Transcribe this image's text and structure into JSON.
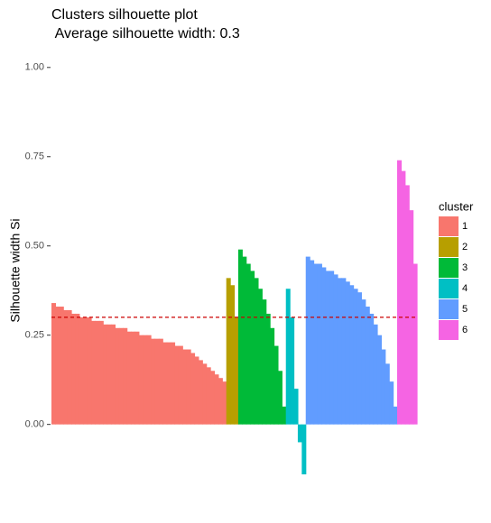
{
  "chart_data": {
    "type": "silhouette",
    "title": "Clusters silhouette plot",
    "subtitle": " Average silhouette width: 0.3",
    "y_label": "Silhouette width Si",
    "legend_title": "cluster",
    "legend_position": "right",
    "average_line": 0.3,
    "average_line_color": "#cc0000",
    "ylim": [
      -0.16,
      1.05
    ],
    "yticks": [
      {
        "value": 0,
        "label": "0.00"
      },
      {
        "value": 0.25,
        "label": "0.25"
      },
      {
        "value": 0.5,
        "label": "0.50"
      },
      {
        "value": 0.75,
        "label": "0.75"
      },
      {
        "value": 1,
        "label": "1.00"
      }
    ],
    "series": [
      {
        "name": "1",
        "color": "#f8766d",
        "values": [
          0.34,
          0.33,
          0.33,
          0.32,
          0.32,
          0.31,
          0.31,
          0.3,
          0.3,
          0.3,
          0.29,
          0.29,
          0.29,
          0.28,
          0.28,
          0.28,
          0.27,
          0.27,
          0.27,
          0.26,
          0.26,
          0.26,
          0.25,
          0.25,
          0.25,
          0.24,
          0.24,
          0.24,
          0.23,
          0.23,
          0.23,
          0.22,
          0.22,
          0.21,
          0.21,
          0.2,
          0.19,
          0.18,
          0.17,
          0.16,
          0.15,
          0.14,
          0.13,
          0.12
        ]
      },
      {
        "name": "2",
        "color": "#b79f00",
        "values": [
          0.41,
          0.39,
          0.3
        ]
      },
      {
        "name": "3",
        "color": "#00ba38",
        "values": [
          0.49,
          0.47,
          0.45,
          0.43,
          0.41,
          0.38,
          0.35,
          0.31,
          0.27,
          0.22,
          0.15,
          0.05
        ]
      },
      {
        "name": "4",
        "color": "#00bfc4",
        "values": [
          0.38,
          0.3,
          0.1,
          -0.05,
          -0.14
        ]
      },
      {
        "name": "5",
        "color": "#619cff",
        "values": [
          0.47,
          0.46,
          0.45,
          0.45,
          0.44,
          0.43,
          0.43,
          0.42,
          0.41,
          0.41,
          0.4,
          0.39,
          0.38,
          0.37,
          0.35,
          0.33,
          0.31,
          0.28,
          0.25,
          0.21,
          0.17,
          0.12,
          0.05
        ]
      },
      {
        "name": "6",
        "color": "#f564e3",
        "values": [
          0.74,
          0.71,
          0.67,
          0.6,
          0.45
        ]
      }
    ]
  }
}
